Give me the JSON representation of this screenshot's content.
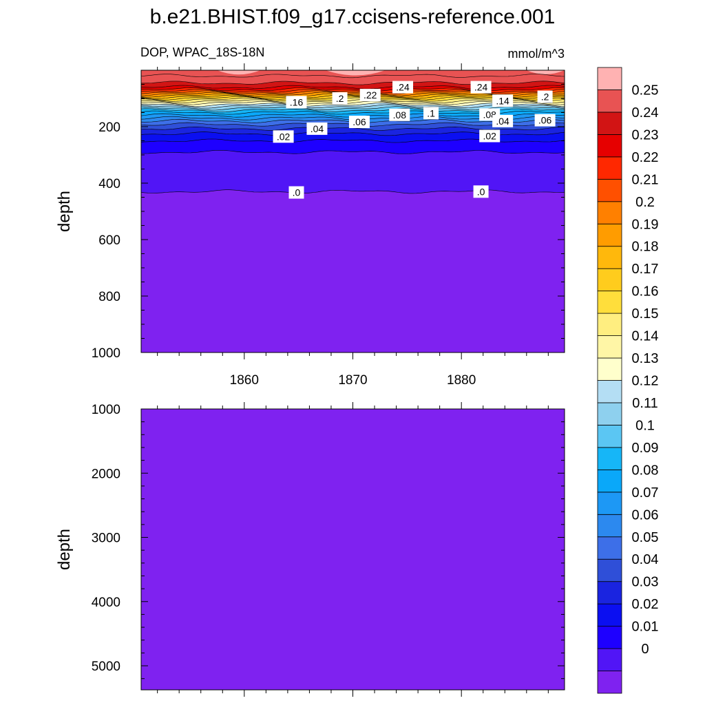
{
  "title": "b.e21.BHIST.f09_g17.ccisens-reference.001",
  "subtitle_left": "DOP, WPAC_18S-18N",
  "subtitle_right": "mmol/m^3",
  "colors": {
    "levels": [
      "#7f22f0",
      "#5115f6",
      "#1e00ff",
      "#0b0ff1",
      "#1a24e0",
      "#2f4fd8",
      "#3d6fe8",
      "#2c89ef",
      "#1d98f5",
      "#0aa8f9",
      "#16b6f7",
      "#5bc6f3",
      "#8ed0ee",
      "#b4def4",
      "#ffffcc",
      "#fff6a6",
      "#ffee80",
      "#ffde3b",
      "#ffcc1d",
      "#ffb80c",
      "#ff9c00",
      "#ff8000",
      "#ff5000",
      "#ff2800",
      "#e60000",
      "#d21414",
      "#e85353",
      "#ffb2b2"
    ]
  },
  "chart_data": [
    {
      "type": "heatmap",
      "panel": "upper",
      "title": "b.e21.BHIST.f09_g17.ccisens-reference.001",
      "subtitle_left": "DOP, WPAC_18S-18N",
      "subtitle_right": "mmol/m^3",
      "xlabel": "",
      "ylabel": "depth",
      "xlim": [
        1850.5,
        1889.5
      ],
      "ylim": [
        1000,
        0
      ],
      "x_ticks": [
        1860,
        1870,
        1880
      ],
      "y_ticks": [
        200,
        400,
        600,
        800,
        1000
      ],
      "contour_labels": [
        {
          "text": ".16",
          "x": 1864.8,
          "y": 113
        },
        {
          "text": ".2",
          "x": 1868.8,
          "y": 100
        },
        {
          "text": ".22",
          "x": 1871.6,
          "y": 88
        },
        {
          "text": ".24",
          "x": 1874.6,
          "y": 60
        },
        {
          "text": ".24",
          "x": 1881.8,
          "y": 60
        },
        {
          "text": ".14",
          "x": 1883.8,
          "y": 108
        },
        {
          "text": ".2",
          "x": 1887.7,
          "y": 94
        },
        {
          "text": ".08",
          "x": 1874.3,
          "y": 158
        },
        {
          "text": ".1",
          "x": 1877.2,
          "y": 152
        },
        {
          "text": ".08",
          "x": 1882.6,
          "y": 157
        },
        {
          "text": ".06",
          "x": 1870.6,
          "y": 183
        },
        {
          "text": ".04",
          "x": 1883.8,
          "y": 180
        },
        {
          "text": ".06",
          "x": 1887.7,
          "y": 177
        },
        {
          "text": ".04",
          "x": 1866.7,
          "y": 207
        },
        {
          "text": ".02",
          "x": 1863.6,
          "y": 235
        },
        {
          "text": ".02",
          "x": 1882.6,
          "y": 233
        },
        {
          "text": ".0",
          "x": 1864.8,
          "y": 433
        },
        {
          "text": ".0",
          "x": 1881.8,
          "y": 430
        }
      ]
    },
    {
      "type": "heatmap",
      "panel": "lower",
      "xlabel": "",
      "ylabel": "depth",
      "xlim": [
        1850.5,
        1889.5
      ],
      "ylim": [
        1000,
        5375
      ],
      "y_ticks": [
        1000,
        2000,
        3000,
        4000,
        5000
      ],
      "value": 0
    }
  ],
  "colorbar": {
    "labels": [
      "0.25",
      "0.24",
      "0.23",
      "0.22",
      "0.21",
      "0.2",
      "0.19",
      "0.18",
      "0.17",
      "0.16",
      "0.15",
      "0.14",
      "0.13",
      "0.12",
      "0.11",
      "0.1",
      "0.09",
      "0.08",
      "0.07",
      "0.06",
      "0.05",
      "0.04",
      "0.03",
      "0.02",
      "0.01",
      "0"
    ]
  }
}
